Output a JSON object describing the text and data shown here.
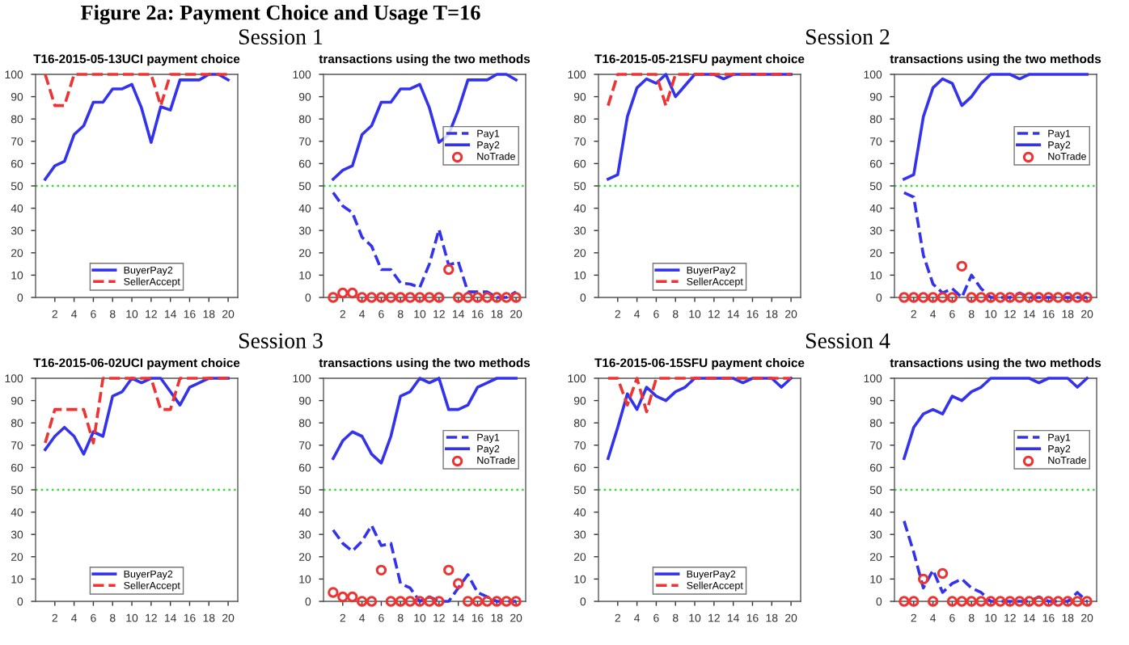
{
  "chart_data": [
    {
      "type": "line",
      "title": "T16-2015-05-13UCI payment choice",
      "annotations": [
        "Figure 2a: Payment Choice and Usage T=16",
        "Session 1"
      ],
      "x": [
        1,
        2,
        3,
        4,
        5,
        6,
        7,
        8,
        9,
        10,
        11,
        12,
        13,
        14,
        15,
        16,
        17,
        18,
        19,
        20
      ],
      "xlim": [
        0,
        21
      ],
      "xticks": [
        2,
        4,
        6,
        8,
        10,
        12,
        14,
        16,
        18,
        20
      ],
      "ylim": [
        0,
        100
      ],
      "yticks": [
        0,
        10,
        20,
        30,
        40,
        50,
        60,
        70,
        80,
        90,
        100
      ],
      "legend": "bottom",
      "ref_lines": [
        {
          "axis": "y",
          "value": 50,
          "color": "#33dd33",
          "line_style": "dotted"
        }
      ],
      "series": [
        {
          "name": "BuyerPay2",
          "color": "#3333ee",
          "line_style": "solid",
          "values": [
            53,
            59,
            61,
            73,
            77,
            87.5,
            87.5,
            93.5,
            93.5,
            95.5,
            85,
            69.5,
            85.5,
            84,
            97.5,
            97.5,
            97.5,
            100,
            100,
            97.5
          ]
        },
        {
          "name": "SellerAccept",
          "color": "#ee3333",
          "line_style": "dashed",
          "values": [
            100,
            86,
            86,
            100,
            100,
            100,
            100,
            100,
            100,
            100,
            100,
            100,
            86,
            100,
            100,
            100,
            100,
            100,
            100,
            100
          ]
        }
      ]
    },
    {
      "type": "line",
      "title": "transactions using the two methods",
      "x": [
        1,
        2,
        3,
        4,
        5,
        6,
        7,
        8,
        9,
        10,
        11,
        12,
        13,
        14,
        15,
        16,
        17,
        18,
        19,
        20
      ],
      "xlim": [
        0,
        21
      ],
      "xticks": [
        2,
        4,
        6,
        8,
        10,
        12,
        14,
        16,
        18,
        20
      ],
      "ylim": [
        0,
        100
      ],
      "yticks": [
        0,
        10,
        20,
        30,
        40,
        50,
        60,
        70,
        80,
        90,
        100
      ],
      "legend": "right",
      "ref_lines": [
        {
          "axis": "y",
          "value": 50,
          "color": "#33dd33",
          "line_style": "dotted"
        }
      ],
      "series": [
        {
          "name": "Pay1",
          "color": "#3333ee",
          "line_style": "dashed",
          "values": [
            47,
            41,
            38,
            27,
            23,
            12.5,
            12.5,
            6.5,
            6,
            4.5,
            15,
            30.5,
            14.5,
            16,
            2.5,
            2.5,
            2.5,
            0,
            0,
            2.5
          ]
        },
        {
          "name": "Pay2",
          "color": "#3333ee",
          "line_style": "solid",
          "values": [
            53,
            57,
            59,
            73,
            77,
            87.5,
            87.5,
            93.5,
            93.5,
            95.5,
            85,
            69.5,
            73,
            84,
            97.5,
            97.5,
            97.5,
            100,
            100,
            97.5
          ]
        },
        {
          "name": "NoTrade",
          "type": "scatter",
          "marker": "circle",
          "color": "#ee3333",
          "values": [
            0,
            2,
            2,
            0,
            0,
            0,
            0,
            0,
            0,
            0,
            0,
            0,
            12.5,
            0,
            0,
            0,
            0,
            0,
            0,
            0
          ]
        }
      ]
    },
    {
      "type": "line",
      "title": "T16-2015-05-21SFU payment choice",
      "annotations": [
        "Session 2"
      ],
      "x": [
        1,
        2,
        3,
        4,
        5,
        6,
        7,
        8,
        9,
        10,
        11,
        12,
        13,
        14,
        15,
        16,
        17,
        18,
        19,
        20
      ],
      "xlim": [
        0,
        21
      ],
      "xticks": [
        2,
        4,
        6,
        8,
        10,
        12,
        14,
        16,
        18,
        20
      ],
      "ylim": [
        0,
        100
      ],
      "yticks": [
        0,
        10,
        20,
        30,
        40,
        50,
        60,
        70,
        80,
        90,
        100
      ],
      "legend": "bottom",
      "ref_lines": [
        {
          "axis": "y",
          "value": 50,
          "color": "#33dd33",
          "line_style": "dotted"
        }
      ],
      "series": [
        {
          "name": "BuyerPay2",
          "color": "#3333ee",
          "line_style": "solid",
          "values": [
            53,
            55,
            81,
            94,
            98,
            96,
            100,
            90,
            95,
            100,
            100,
            100,
            98,
            100,
            100,
            100,
            100,
            100,
            100,
            100
          ]
        },
        {
          "name": "SellerAccept",
          "color": "#ee3333",
          "line_style": "dashed",
          "values": [
            86,
            100,
            100,
            100,
            100,
            100,
            86,
            100,
            100,
            100,
            100,
            100,
            100,
            100,
            100,
            100,
            100,
            100,
            100,
            100
          ]
        }
      ]
    },
    {
      "type": "line",
      "title": "transactions using the two methods",
      "x": [
        1,
        2,
        3,
        4,
        5,
        6,
        7,
        8,
        9,
        10,
        11,
        12,
        13,
        14,
        15,
        16,
        17,
        18,
        19,
        20
      ],
      "xlim": [
        0,
        21
      ],
      "xticks": [
        2,
        4,
        6,
        8,
        10,
        12,
        14,
        16,
        18,
        20
      ],
      "ylim": [
        0,
        100
      ],
      "yticks": [
        0,
        10,
        20,
        30,
        40,
        50,
        60,
        70,
        80,
        90,
        100
      ],
      "legend": "right",
      "ref_lines": [
        {
          "axis": "y",
          "value": 50,
          "color": "#33dd33",
          "line_style": "dotted"
        }
      ],
      "series": [
        {
          "name": "Pay1",
          "color": "#3333ee",
          "line_style": "dashed",
          "values": [
            47,
            45,
            19,
            6,
            2,
            4,
            0,
            10,
            4,
            0,
            0,
            0,
            2,
            0,
            0,
            0,
            0,
            0,
            0,
            0
          ]
        },
        {
          "name": "Pay2",
          "color": "#3333ee",
          "line_style": "solid",
          "values": [
            53,
            55,
            81,
            94,
            98,
            96,
            86,
            90,
            96,
            100,
            100,
            100,
            98,
            100,
            100,
            100,
            100,
            100,
            100,
            100
          ]
        },
        {
          "name": "NoTrade",
          "type": "scatter",
          "marker": "circle",
          "color": "#ee3333",
          "values": [
            0,
            0,
            0,
            0,
            0,
            0,
            14,
            0,
            0,
            0,
            0,
            0,
            0,
            0,
            0,
            0,
            0,
            0,
            0,
            0
          ]
        }
      ]
    },
    {
      "type": "line",
      "title": "T16-2015-06-02UCI payment choice",
      "annotations": [
        "Session 3"
      ],
      "x": [
        1,
        2,
        3,
        4,
        5,
        6,
        7,
        8,
        9,
        10,
        11,
        12,
        13,
        14,
        15,
        16,
        17,
        18,
        19,
        20
      ],
      "xlim": [
        0,
        21
      ],
      "xticks": [
        2,
        4,
        6,
        8,
        10,
        12,
        14,
        16,
        18,
        20
      ],
      "ylim": [
        0,
        100
      ],
      "yticks": [
        0,
        10,
        20,
        30,
        40,
        50,
        60,
        70,
        80,
        90,
        100
      ],
      "legend": "bottom",
      "ref_lines": [
        {
          "axis": "y",
          "value": 50,
          "color": "#33dd33",
          "line_style": "dotted"
        }
      ],
      "series": [
        {
          "name": "BuyerPay2",
          "color": "#3333ee",
          "line_style": "solid",
          "values": [
            68,
            74,
            78,
            74,
            66,
            76,
            74,
            92,
            94,
            100,
            98,
            100,
            100,
            94,
            88,
            96,
            98,
            100,
            100,
            100
          ]
        },
        {
          "name": "SellerAccept",
          "color": "#ee3333",
          "line_style": "dashed",
          "values": [
            71,
            86,
            86,
            86,
            86,
            71,
            100,
            100,
            100,
            100,
            100,
            100,
            86,
            86,
            100,
            100,
            100,
            100,
            100,
            100
          ]
        }
      ]
    },
    {
      "type": "line",
      "title": "transactions using the two methods",
      "x": [
        1,
        2,
        3,
        4,
        5,
        6,
        7,
        8,
        9,
        10,
        11,
        12,
        13,
        14,
        15,
        16,
        17,
        18,
        19,
        20
      ],
      "xlim": [
        0,
        21
      ],
      "xticks": [
        2,
        4,
        6,
        8,
        10,
        12,
        14,
        16,
        18,
        20
      ],
      "ylim": [
        0,
        100
      ],
      "yticks": [
        0,
        10,
        20,
        30,
        40,
        50,
        60,
        70,
        80,
        90,
        100
      ],
      "legend": "right",
      "ref_lines": [
        {
          "axis": "y",
          "value": 50,
          "color": "#33dd33",
          "line_style": "dotted"
        }
      ],
      "series": [
        {
          "name": "Pay1",
          "color": "#3333ee",
          "line_style": "dashed",
          "values": [
            32,
            26,
            22.5,
            27,
            34,
            25,
            26,
            8,
            6,
            0,
            2,
            0,
            0,
            6,
            12,
            4,
            2,
            0,
            0,
            0
          ]
        },
        {
          "name": "Pay2",
          "color": "#3333ee",
          "line_style": "solid",
          "values": [
            64,
            72,
            76,
            74,
            66,
            62,
            74,
            92,
            94,
            100,
            98,
            100,
            86,
            86,
            88,
            96,
            98,
            100,
            100,
            100
          ]
        },
        {
          "name": "NoTrade",
          "type": "scatter",
          "marker": "circle",
          "color": "#ee3333",
          "values": [
            4,
            2,
            2,
            0,
            0,
            14,
            0,
            0,
            0,
            0,
            0,
            0,
            14,
            8,
            0,
            0,
            0,
            0,
            0,
            0
          ]
        }
      ]
    },
    {
      "type": "line",
      "title": "T16-2015-06-15SFU payment choice",
      "annotations": [
        "Session 4"
      ],
      "x": [
        1,
        2,
        3,
        4,
        5,
        6,
        7,
        8,
        9,
        10,
        11,
        12,
        13,
        14,
        15,
        16,
        17,
        18,
        19,
        20
      ],
      "xlim": [
        0,
        21
      ],
      "xticks": [
        2,
        4,
        6,
        8,
        10,
        12,
        14,
        16,
        18,
        20
      ],
      "ylim": [
        0,
        100
      ],
      "yticks": [
        0,
        10,
        20,
        30,
        40,
        50,
        60,
        70,
        80,
        90,
        100
      ],
      "legend": "bottom",
      "ref_lines": [
        {
          "axis": "y",
          "value": 50,
          "color": "#33dd33",
          "line_style": "dotted"
        }
      ],
      "series": [
        {
          "name": "BuyerPay2",
          "color": "#3333ee",
          "line_style": "solid",
          "values": [
            64,
            78,
            93,
            86,
            96,
            92,
            90,
            94,
            96,
            100,
            100,
            100,
            100,
            100,
            98,
            100,
            100,
            100,
            96,
            100
          ]
        },
        {
          "name": "SellerAccept",
          "color": "#ee3333",
          "line_style": "dashed",
          "values": [
            100,
            100,
            88,
            100,
            85,
            100,
            100,
            100,
            100,
            100,
            100,
            100,
            100,
            100,
            100,
            100,
            100,
            100,
            100,
            100
          ]
        }
      ]
    },
    {
      "type": "line",
      "title": "transactions using the two methods",
      "x": [
        1,
        2,
        3,
        4,
        5,
        6,
        7,
        8,
        9,
        10,
        11,
        12,
        13,
        14,
        15,
        16,
        17,
        18,
        19,
        20
      ],
      "xlim": [
        0,
        21
      ],
      "xticks": [
        2,
        4,
        6,
        8,
        10,
        12,
        14,
        16,
        18,
        20
      ],
      "ylim": [
        0,
        100
      ],
      "yticks": [
        0,
        10,
        20,
        30,
        40,
        50,
        60,
        70,
        80,
        90,
        100
      ],
      "legend": "right",
      "ref_lines": [
        {
          "axis": "y",
          "value": 50,
          "color": "#33dd33",
          "line_style": "dotted"
        }
      ],
      "series": [
        {
          "name": "Pay1",
          "color": "#3333ee",
          "line_style": "dashed",
          "values": [
            36,
            22,
            6,
            14,
            4,
            8,
            10,
            6,
            4,
            0,
            0,
            0,
            0,
            0,
            2,
            0,
            0,
            0,
            4,
            0
          ]
        },
        {
          "name": "Pay2",
          "color": "#3333ee",
          "line_style": "solid",
          "values": [
            64,
            78,
            84,
            86,
            84,
            92,
            90,
            94,
            96,
            100,
            100,
            100,
            100,
            100,
            98,
            100,
            100,
            100,
            96,
            100
          ]
        },
        {
          "name": "NoTrade",
          "type": "scatter",
          "marker": "circle",
          "color": "#ee3333",
          "values": [
            0,
            0,
            10,
            0,
            12.5,
            0,
            0,
            0,
            0,
            0,
            0,
            0,
            0,
            0,
            0,
            0,
            0,
            0,
            0,
            0
          ]
        }
      ]
    }
  ]
}
